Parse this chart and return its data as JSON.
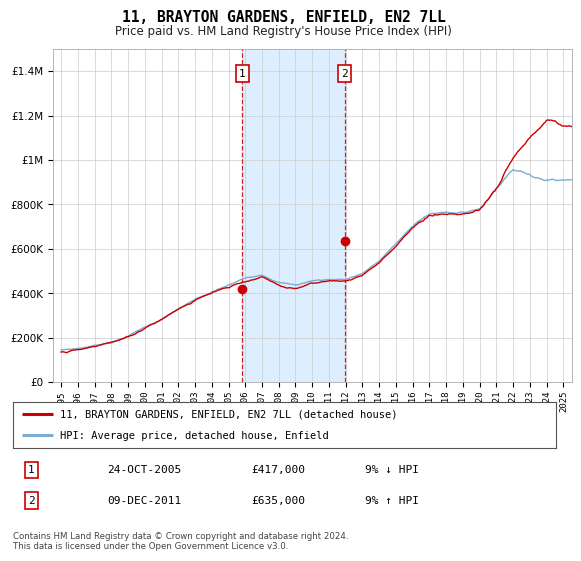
{
  "title": "11, BRAYTON GARDENS, ENFIELD, EN2 7LL",
  "subtitle": "Price paid vs. HM Land Registry's House Price Index (HPI)",
  "legend_line1": "11, BRAYTON GARDENS, ENFIELD, EN2 7LL (detached house)",
  "legend_line2": "HPI: Average price, detached house, Enfield",
  "footer": "Contains HM Land Registry data © Crown copyright and database right 2024.\nThis data is licensed under the Open Government Licence v3.0.",
  "transaction1_date": "24-OCT-2005",
  "transaction1_price": "£417,000",
  "transaction1_hpi": "9% ↓ HPI",
  "transaction2_date": "09-DEC-2011",
  "transaction2_price": "£635,000",
  "transaction2_hpi": "9% ↑ HPI",
  "sale1_year": 2005.82,
  "sale1_price": 417000,
  "sale2_year": 2011.93,
  "sale2_price": 635000,
  "shade_start": 2005.82,
  "shade_end": 2011.93,
  "hpi_color": "#7aadd4",
  "price_color": "#cc0000",
  "box_color": "#cc0000",
  "shade_color": "#ddeeff",
  "grid_color": "#cccccc",
  "background_color": "#ffffff",
  "ylim": [
    0,
    1500000
  ],
  "xlim_start": 1994.5,
  "xlim_end": 2025.5,
  "hpi_base_years": [
    1995,
    1996,
    1997,
    1998,
    1999,
    2000,
    2001,
    2002,
    2003,
    2004,
    2005,
    2006,
    2007,
    2008,
    2009,
    2010,
    2011,
    2012,
    2013,
    2014,
    2015,
    2016,
    2017,
    2018,
    2019,
    2020,
    2021,
    2022,
    2023,
    2024,
    2025
  ],
  "hpi_base_values": [
    145000,
    152000,
    165000,
    182000,
    210000,
    250000,
    285000,
    330000,
    370000,
    400000,
    430000,
    460000,
    480000,
    450000,
    435000,
    455000,
    460000,
    462000,
    490000,
    545000,
    620000,
    700000,
    750000,
    760000,
    765000,
    780000,
    870000,
    960000,
    940000,
    920000,
    910000
  ],
  "price_base_years": [
    1995,
    1996,
    1997,
    1998,
    1999,
    2000,
    2001,
    2002,
    2003,
    2004,
    2005,
    2006,
    2007,
    2008,
    2009,
    2010,
    2011,
    2012,
    2013,
    2014,
    2015,
    2016,
    2017,
    2018,
    2019,
    2020,
    2021,
    2022,
    2023,
    2024,
    2025
  ],
  "price_base_values": [
    135000,
    142000,
    158000,
    176000,
    202000,
    243000,
    278000,
    322000,
    362000,
    392000,
    417000,
    447000,
    468000,
    438000,
    420000,
    440000,
    447000,
    450000,
    477000,
    535000,
    614000,
    698000,
    755000,
    768000,
    775000,
    796000,
    900000,
    1020000,
    1100000,
    1180000,
    1150000
  ]
}
